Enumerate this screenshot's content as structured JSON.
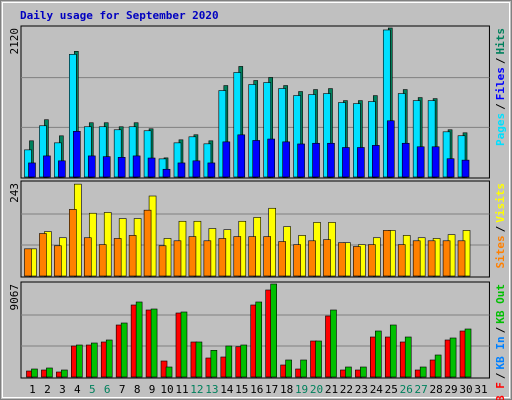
{
  "chart_data": [
    {
      "type": "bar",
      "title": "Daily usage for September 2020",
      "title_color": "#0000c0",
      "legend_separator": "/",
      "ylim": [
        0,
        2120
      ],
      "yticks": [
        2120
      ],
      "gridlines": [
        706.7,
        1413.3
      ],
      "series": [
        {
          "name": "Pages",
          "color": "#00e0ff",
          "values": [
            386,
            729,
            486,
            1745,
            715,
            715,
            672,
            715,
            658,
            258,
            486,
            572,
            472,
            1230,
            1487,
            1316,
            1344,
            1259,
            1159,
            1173,
            1187,
            1059,
            1044,
            1073,
            2092,
            1187,
            1087,
            1087,
            643,
            587,
            0
          ]
        },
        {
          "name": "Files",
          "color": "#0000ff",
          "values": [
            200,
            300,
            230,
            650,
            300,
            290,
            280,
            300,
            270,
            110,
            200,
            230,
            200,
            500,
            600,
            520,
            540,
            500,
            470,
            480,
            480,
            420,
            420,
            450,
            800,
            480,
            430,
            430,
            260,
            240,
            0
          ]
        },
        {
          "name": "Hits",
          "color": "#00805c",
          "values": [
            515,
            815,
            586,
            1788,
            772,
            772,
            715,
            772,
            686,
            272,
            529,
            601,
            515,
            1301,
            1573,
            1373,
            1416,
            1301,
            1216,
            1244,
            1258,
            1087,
            1087,
            1158,
            2120,
            1244,
            1130,
            1115,
            672,
            629,
            0
          ]
        }
      ]
    },
    {
      "type": "bar",
      "legend_separator": "/",
      "ylim": [
        0,
        243
      ],
      "yticks": [
        243
      ],
      "gridlines": [
        81,
        162
      ],
      "series": [
        {
          "name": "Sites",
          "color": "#ff8000",
          "values": [
            71,
            111,
            79,
            174,
            100,
            82,
            98,
            106,
            172,
            79,
            92,
            103,
            92,
            98,
            103,
            103,
            103,
            90,
            82,
            92,
            95,
            87,
            77,
            82,
            119,
            82,
            92,
            92,
            92,
            92,
            0
          ]
        },
        {
          "name": "Visits",
          "color": "#ffff00",
          "values": [
            71,
            116,
            100,
            240,
            164,
            166,
            150,
            150,
            209,
            98,
            143,
            143,
            124,
            121,
            143,
            153,
            177,
            129,
            106,
            140,
            140,
            87,
            82,
            100,
            119,
            106,
            100,
            98,
            108,
            119,
            0
          ]
        }
      ]
    },
    {
      "type": "bar",
      "legend_separator": "/",
      "ylim": [
        0,
        9067
      ],
      "yticks": [
        9067
      ],
      "gridlines": [
        3022,
        6045
      ],
      "categories": [
        "1",
        "2",
        "3",
        "4",
        "5",
        "6",
        "7",
        "8",
        "9",
        "10",
        "11",
        "12",
        "13",
        "14",
        "15",
        "16",
        "17",
        "18",
        "19",
        "20",
        "21",
        "22",
        "23",
        "24",
        "25",
        "26",
        "27",
        "28",
        "29",
        "30",
        "31"
      ],
      "category_colors": [
        "#000000",
        "#000000",
        "#000000",
        "#000000",
        "#00805c",
        "#00805c",
        "#000000",
        "#000000",
        "#000000",
        "#000000",
        "#000000",
        "#00805c",
        "#00805c",
        "#000000",
        "#000000",
        "#000000",
        "#000000",
        "#000000",
        "#00805c",
        "#00805c",
        "#000000",
        "#000000",
        "#000000",
        "#000000",
        "#000000",
        "#00805c",
        "#00805c",
        "#000000",
        "#000000",
        "#000000",
        "#000000"
      ],
      "series": [
        {
          "name": "KB F",
          "color": "#ff0000",
          "values": [
            585,
            683,
            488,
            3023,
            3120,
            3413,
            5070,
            7020,
            6533,
            1560,
            6240,
            3413,
            1853,
            1950,
            2950,
            7020,
            8483,
            1170,
            780,
            3510,
            5948,
            683,
            683,
            3900,
            3900,
            3413,
            683,
            1658,
            3608,
            4485,
            0
          ]
        },
        {
          "name": "KB In",
          "color": "#0080ff",
          "values": [
            0,
            0,
            0,
            0,
            0,
            0,
            0,
            0,
            0,
            0,
            0,
            0,
            0,
            0,
            0,
            0,
            0,
            0,
            0,
            0,
            0,
            0,
            0,
            0,
            0,
            0,
            0,
            0,
            0,
            0,
            0
          ]
        },
        {
          "name": "KB Out",
          "color": "#00c000",
          "values": [
            780,
            878,
            683,
            3120,
            3315,
            3608,
            5265,
            7313,
            6630,
            975,
            6338,
            3413,
            2600,
            3023,
            3120,
            7313,
            9067,
            1658,
            1658,
            3510,
            6533,
            975,
            975,
            4485,
            5070,
            3900,
            975,
            2145,
            3803,
            4680,
            0
          ]
        }
      ]
    }
  ]
}
